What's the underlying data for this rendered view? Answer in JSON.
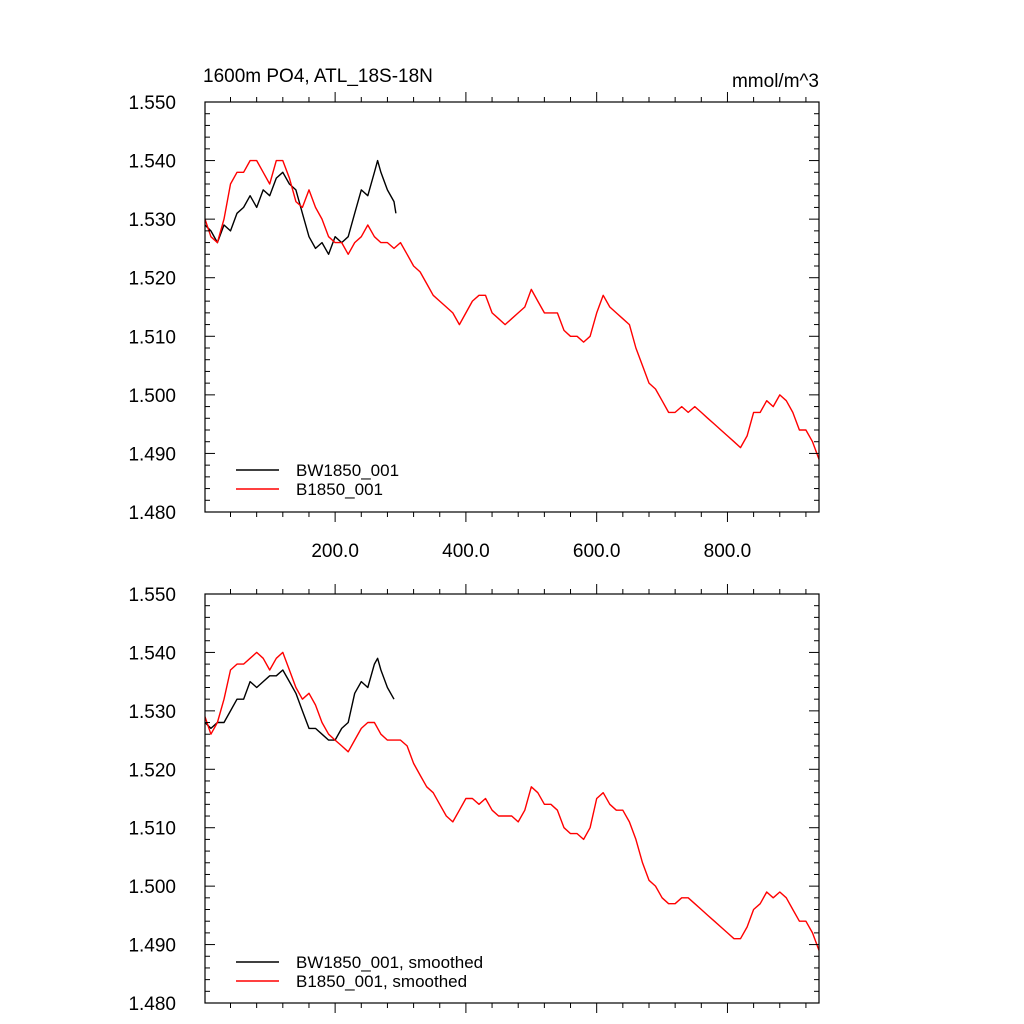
{
  "figure": {
    "title_left": "1600m PO4, ATL_18S-18N",
    "title_right": "mmol/m^3"
  },
  "colors": {
    "black_series": "#000000",
    "red_series": "#ff0000"
  },
  "chart_data": [
    {
      "type": "line",
      "panel": "top",
      "title": "1600m PO4, ATL_18S-18N",
      "units": "mmol/m^3",
      "xlim": [
        1,
        940
      ],
      "ylim": [
        1.48,
        1.55
      ],
      "xticks": [
        200,
        400,
        600,
        800
      ],
      "xtick_labels": [
        "200.0",
        "400.0",
        "600.0",
        "800.0"
      ],
      "yticks": [
        1.48,
        1.49,
        1.5,
        1.51,
        1.52,
        1.53,
        1.54,
        1.55
      ],
      "ytick_labels": [
        "1.480",
        "1.490",
        "1.500",
        "1.510",
        "1.520",
        "1.530",
        "1.540",
        "1.550"
      ],
      "legend_position": "bottom-left",
      "series": [
        {
          "name": "BW1850_001",
          "color": "#000000",
          "x": [
            1,
            10,
            20,
            30,
            40,
            50,
            60,
            70,
            80,
            90,
            100,
            110,
            120,
            130,
            140,
            150,
            160,
            170,
            180,
            190,
            200,
            210,
            220,
            230,
            240,
            250,
            260,
            265,
            270,
            280,
            290,
            293
          ],
          "y": [
            1.529,
            1.528,
            1.526,
            1.529,
            1.528,
            1.531,
            1.532,
            1.534,
            1.532,
            1.535,
            1.534,
            1.537,
            1.538,
            1.536,
            1.535,
            1.531,
            1.527,
            1.525,
            1.526,
            1.524,
            1.527,
            1.526,
            1.527,
            1.531,
            1.535,
            1.534,
            1.538,
            1.54,
            1.538,
            1.535,
            1.533,
            1.531
          ]
        },
        {
          "name": "B1850_001",
          "color": "#ff0000",
          "x": [
            1,
            10,
            20,
            30,
            40,
            50,
            60,
            70,
            80,
            90,
            100,
            110,
            120,
            130,
            140,
            150,
            160,
            170,
            180,
            190,
            200,
            210,
            220,
            230,
            240,
            250,
            260,
            270,
            280,
            290,
            300,
            310,
            320,
            330,
            340,
            350,
            360,
            370,
            380,
            390,
            400,
            410,
            420,
            430,
            440,
            450,
            460,
            470,
            480,
            490,
            500,
            510,
            520,
            530,
            540,
            550,
            560,
            570,
            580,
            590,
            600,
            610,
            620,
            630,
            640,
            650,
            660,
            670,
            680,
            690,
            700,
            710,
            720,
            730,
            740,
            750,
            760,
            770,
            780,
            790,
            800,
            810,
            820,
            830,
            840,
            850,
            860,
            870,
            880,
            890,
            900,
            910,
            920,
            930,
            940
          ],
          "y": [
            1.53,
            1.527,
            1.526,
            1.53,
            1.536,
            1.538,
            1.538,
            1.54,
            1.54,
            1.538,
            1.536,
            1.54,
            1.54,
            1.537,
            1.533,
            1.532,
            1.535,
            1.532,
            1.53,
            1.527,
            1.526,
            1.526,
            1.524,
            1.526,
            1.527,
            1.529,
            1.527,
            1.526,
            1.526,
            1.525,
            1.526,
            1.524,
            1.522,
            1.521,
            1.519,
            1.517,
            1.516,
            1.515,
            1.514,
            1.512,
            1.514,
            1.516,
            1.517,
            1.517,
            1.514,
            1.513,
            1.512,
            1.513,
            1.514,
            1.515,
            1.518,
            1.516,
            1.514,
            1.514,
            1.514,
            1.511,
            1.51,
            1.51,
            1.509,
            1.51,
            1.514,
            1.517,
            1.515,
            1.514,
            1.513,
            1.512,
            1.508,
            1.505,
            1.502,
            1.501,
            1.499,
            1.497,
            1.497,
            1.498,
            1.497,
            1.498,
            1.497,
            1.496,
            1.495,
            1.494,
            1.493,
            1.492,
            1.491,
            1.493,
            1.497,
            1.497,
            1.499,
            1.498,
            1.5,
            1.499,
            1.497,
            1.494,
            1.494,
            1.492,
            1.489
          ]
        }
      ]
    },
    {
      "type": "line",
      "panel": "bottom",
      "xlim": [
        1,
        940
      ],
      "ylim": [
        1.48,
        1.55
      ],
      "xticks": [
        200,
        400,
        600,
        800
      ],
      "xtick_labels": [],
      "yticks": [
        1.48,
        1.49,
        1.5,
        1.51,
        1.52,
        1.53,
        1.54,
        1.55
      ],
      "ytick_labels": [
        "1.480",
        "1.490",
        "1.500",
        "1.510",
        "1.520",
        "1.530",
        "1.540",
        "1.550"
      ],
      "legend_position": "bottom-left",
      "series": [
        {
          "name": "BW1850_001, smoothed",
          "color": "#000000",
          "x": [
            1,
            10,
            20,
            30,
            40,
            50,
            60,
            70,
            80,
            90,
            100,
            110,
            120,
            130,
            140,
            150,
            160,
            170,
            180,
            190,
            200,
            210,
            220,
            230,
            240,
            250,
            260,
            265,
            270,
            280,
            290
          ],
          "y": [
            1.528,
            1.527,
            1.528,
            1.528,
            1.53,
            1.532,
            1.532,
            1.535,
            1.534,
            1.535,
            1.536,
            1.536,
            1.537,
            1.535,
            1.533,
            1.53,
            1.527,
            1.527,
            1.526,
            1.525,
            1.525,
            1.527,
            1.528,
            1.533,
            1.535,
            1.534,
            1.538,
            1.539,
            1.537,
            1.534,
            1.532
          ]
        },
        {
          "name": "B1850_001, smoothed",
          "color": "#ff0000",
          "x": [
            1,
            10,
            20,
            30,
            40,
            50,
            60,
            70,
            80,
            90,
            100,
            110,
            120,
            130,
            140,
            150,
            160,
            170,
            180,
            190,
            200,
            210,
            220,
            230,
            240,
            250,
            260,
            270,
            280,
            290,
            300,
            310,
            320,
            330,
            340,
            350,
            360,
            370,
            380,
            390,
            400,
            410,
            420,
            430,
            440,
            450,
            460,
            470,
            480,
            490,
            500,
            510,
            520,
            530,
            540,
            550,
            560,
            570,
            580,
            590,
            600,
            610,
            620,
            630,
            640,
            650,
            660,
            670,
            680,
            690,
            700,
            710,
            720,
            730,
            740,
            750,
            760,
            770,
            780,
            790,
            800,
            810,
            820,
            830,
            840,
            850,
            860,
            870,
            880,
            890,
            900,
            910,
            920,
            930,
            940
          ],
          "y": [
            1.529,
            1.526,
            1.528,
            1.532,
            1.537,
            1.538,
            1.538,
            1.539,
            1.54,
            1.539,
            1.537,
            1.539,
            1.54,
            1.537,
            1.534,
            1.532,
            1.533,
            1.531,
            1.528,
            1.526,
            1.525,
            1.524,
            1.523,
            1.525,
            1.527,
            1.528,
            1.528,
            1.526,
            1.525,
            1.525,
            1.525,
            1.524,
            1.521,
            1.519,
            1.517,
            1.516,
            1.514,
            1.512,
            1.511,
            1.513,
            1.515,
            1.515,
            1.514,
            1.515,
            1.513,
            1.512,
            1.512,
            1.512,
            1.511,
            1.513,
            1.517,
            1.516,
            1.514,
            1.514,
            1.513,
            1.51,
            1.509,
            1.509,
            1.508,
            1.51,
            1.515,
            1.516,
            1.514,
            1.513,
            1.513,
            1.511,
            1.508,
            1.504,
            1.501,
            1.5,
            1.498,
            1.497,
            1.497,
            1.498,
            1.498,
            1.497,
            1.496,
            1.495,
            1.494,
            1.493,
            1.492,
            1.491,
            1.491,
            1.493,
            1.496,
            1.497,
            1.499,
            1.498,
            1.499,
            1.498,
            1.496,
            1.494,
            1.494,
            1.492,
            1.489
          ]
        }
      ]
    }
  ]
}
